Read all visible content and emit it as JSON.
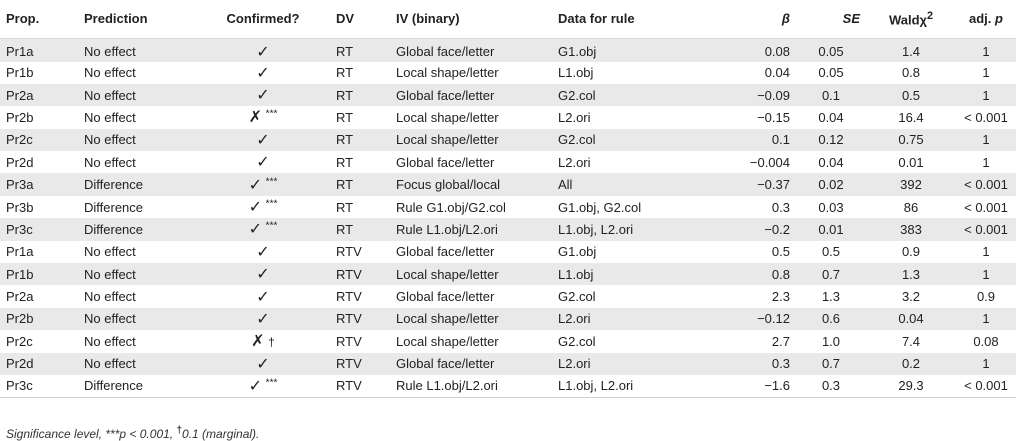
{
  "headers": {
    "prop": "Prop.",
    "prediction": "Prediction",
    "confirmed": "Confirmed?",
    "dv": "DV",
    "iv": "IV (binary)",
    "data": "Data for rule",
    "beta": "β",
    "se": "SE",
    "wald": "Waldχ",
    "wald_sup": "2",
    "adjp_prefix": "adj. ",
    "adjp_italic": "p"
  },
  "rows": [
    {
      "prop": "Pr1a",
      "prediction": "No effect",
      "check": "✓",
      "sig": "",
      "dv": "RT",
      "iv": "Global face/letter",
      "data": "G1.obj",
      "beta": "0.08",
      "se": "0.05",
      "wald": "1.4",
      "adjp": "1"
    },
    {
      "prop": "Pr1b",
      "prediction": "No effect",
      "check": "✓",
      "sig": "",
      "dv": "RT",
      "iv": "Local shape/letter",
      "data": "L1.obj",
      "beta": "0.04",
      "se": "0.05",
      "wald": "0.8",
      "adjp": "1"
    },
    {
      "prop": "Pr2a",
      "prediction": "No effect",
      "check": "✓",
      "sig": "",
      "dv": "RT",
      "iv": "Global face/letter",
      "data": "G2.col",
      "beta": "−0.09",
      "se": "0.1",
      "wald": "0.5",
      "adjp": "1"
    },
    {
      "prop": "Pr2b",
      "prediction": "No effect",
      "check": "✗",
      "sig": "***",
      "dv": "RT",
      "iv": "Local shape/letter",
      "data": "L2.ori",
      "beta": "−0.15",
      "se": "0.04",
      "wald": "16.4",
      "adjp": "< 0.001"
    },
    {
      "prop": "Pr2c",
      "prediction": "No effect",
      "check": "✓",
      "sig": "",
      "dv": "RT",
      "iv": "Local shape/letter",
      "data": "G2.col",
      "beta": "0.1",
      "se": "0.12",
      "wald": "0.75",
      "adjp": "1"
    },
    {
      "prop": "Pr2d",
      "prediction": "No effect",
      "check": "✓",
      "sig": "",
      "dv": "RT",
      "iv": "Global face/letter",
      "data": "L2.ori",
      "beta": "−0.004",
      "se": "0.04",
      "wald": "0.01",
      "adjp": "1"
    },
    {
      "prop": "Pr3a",
      "prediction": "Difference",
      "check": "✓",
      "sig": "***",
      "dv": "RT",
      "iv": "Focus global/local",
      "data": "All",
      "beta": "−0.37",
      "se": "0.02",
      "wald": "392",
      "adjp": "< 0.001"
    },
    {
      "prop": "Pr3b",
      "prediction": "Difference",
      "check": "✓",
      "sig": "***",
      "dv": "RT",
      "iv": "Rule G1.obj/G2.col",
      "data": "G1.obj, G2.col",
      "beta": "0.3",
      "se": "0.03",
      "wald": "86",
      "adjp": "< 0.001"
    },
    {
      "prop": "Pr3c",
      "prediction": "Difference",
      "check": "✓",
      "sig": "***",
      "dv": "RT",
      "iv": "Rule L1.obj/L2.ori",
      "data": "L1.obj, L2.ori",
      "beta": "−0.2",
      "se": "0.01",
      "wald": "383",
      "adjp": "< 0.001"
    },
    {
      "prop": "Pr1a",
      "prediction": "No effect",
      "check": "✓",
      "sig": "",
      "dv": "RTV",
      "iv": "Global face/letter",
      "data": "G1.obj",
      "beta": "0.5",
      "se": "0.5",
      "wald": "0.9",
      "adjp": "1"
    },
    {
      "prop": "Pr1b",
      "prediction": "No effect",
      "check": "✓",
      "sig": "",
      "dv": "RTV",
      "iv": "Local shape/letter",
      "data": "L1.obj",
      "beta": "0.8",
      "se": "0.7",
      "wald": "1.3",
      "adjp": "1"
    },
    {
      "prop": "Pr2a",
      "prediction": "No effect",
      "check": "✓",
      "sig": "",
      "dv": "RTV",
      "iv": "Global face/letter",
      "data": "G2.col",
      "beta": "2.3",
      "se": "1.3",
      "wald": "3.2",
      "adjp": "0.9"
    },
    {
      "prop": "Pr2b",
      "prediction": "No effect",
      "check": "✓",
      "sig": "",
      "dv": "RTV",
      "iv": "Local shape/letter",
      "data": "L2.ori",
      "beta": "−0.12",
      "se": "0.6",
      "wald": "0.04",
      "adjp": "1"
    },
    {
      "prop": "Pr2c",
      "prediction": "No effect",
      "check": "✗",
      "sig": "†",
      "dv": "RTV",
      "iv": "Local shape/letter",
      "data": "G2.col",
      "beta": "2.7",
      "se": "1.0",
      "wald": "7.4",
      "adjp": "0.08"
    },
    {
      "prop": "Pr2d",
      "prediction": "No effect",
      "check": "✓",
      "sig": "",
      "dv": "RTV",
      "iv": "Global face/letter",
      "data": "L2.ori",
      "beta": "0.3",
      "se": "0.7",
      "wald": "0.2",
      "adjp": "1"
    },
    {
      "prop": "Pr3c",
      "prediction": "Difference",
      "check": "✓",
      "sig": "***",
      "dv": "RTV",
      "iv": "Rule L1.obj/L2.ori",
      "data": "L1.obj, L2.ori",
      "beta": "−1.6",
      "se": "0.3",
      "wald": "29.3",
      "adjp": "< 0.001"
    }
  ],
  "note": {
    "text_a": "Significance level, ",
    "stars": "***",
    "text_b": "p < 0.001, ",
    "dagger": "†",
    "text_c": "0.1 (marginal)."
  }
}
